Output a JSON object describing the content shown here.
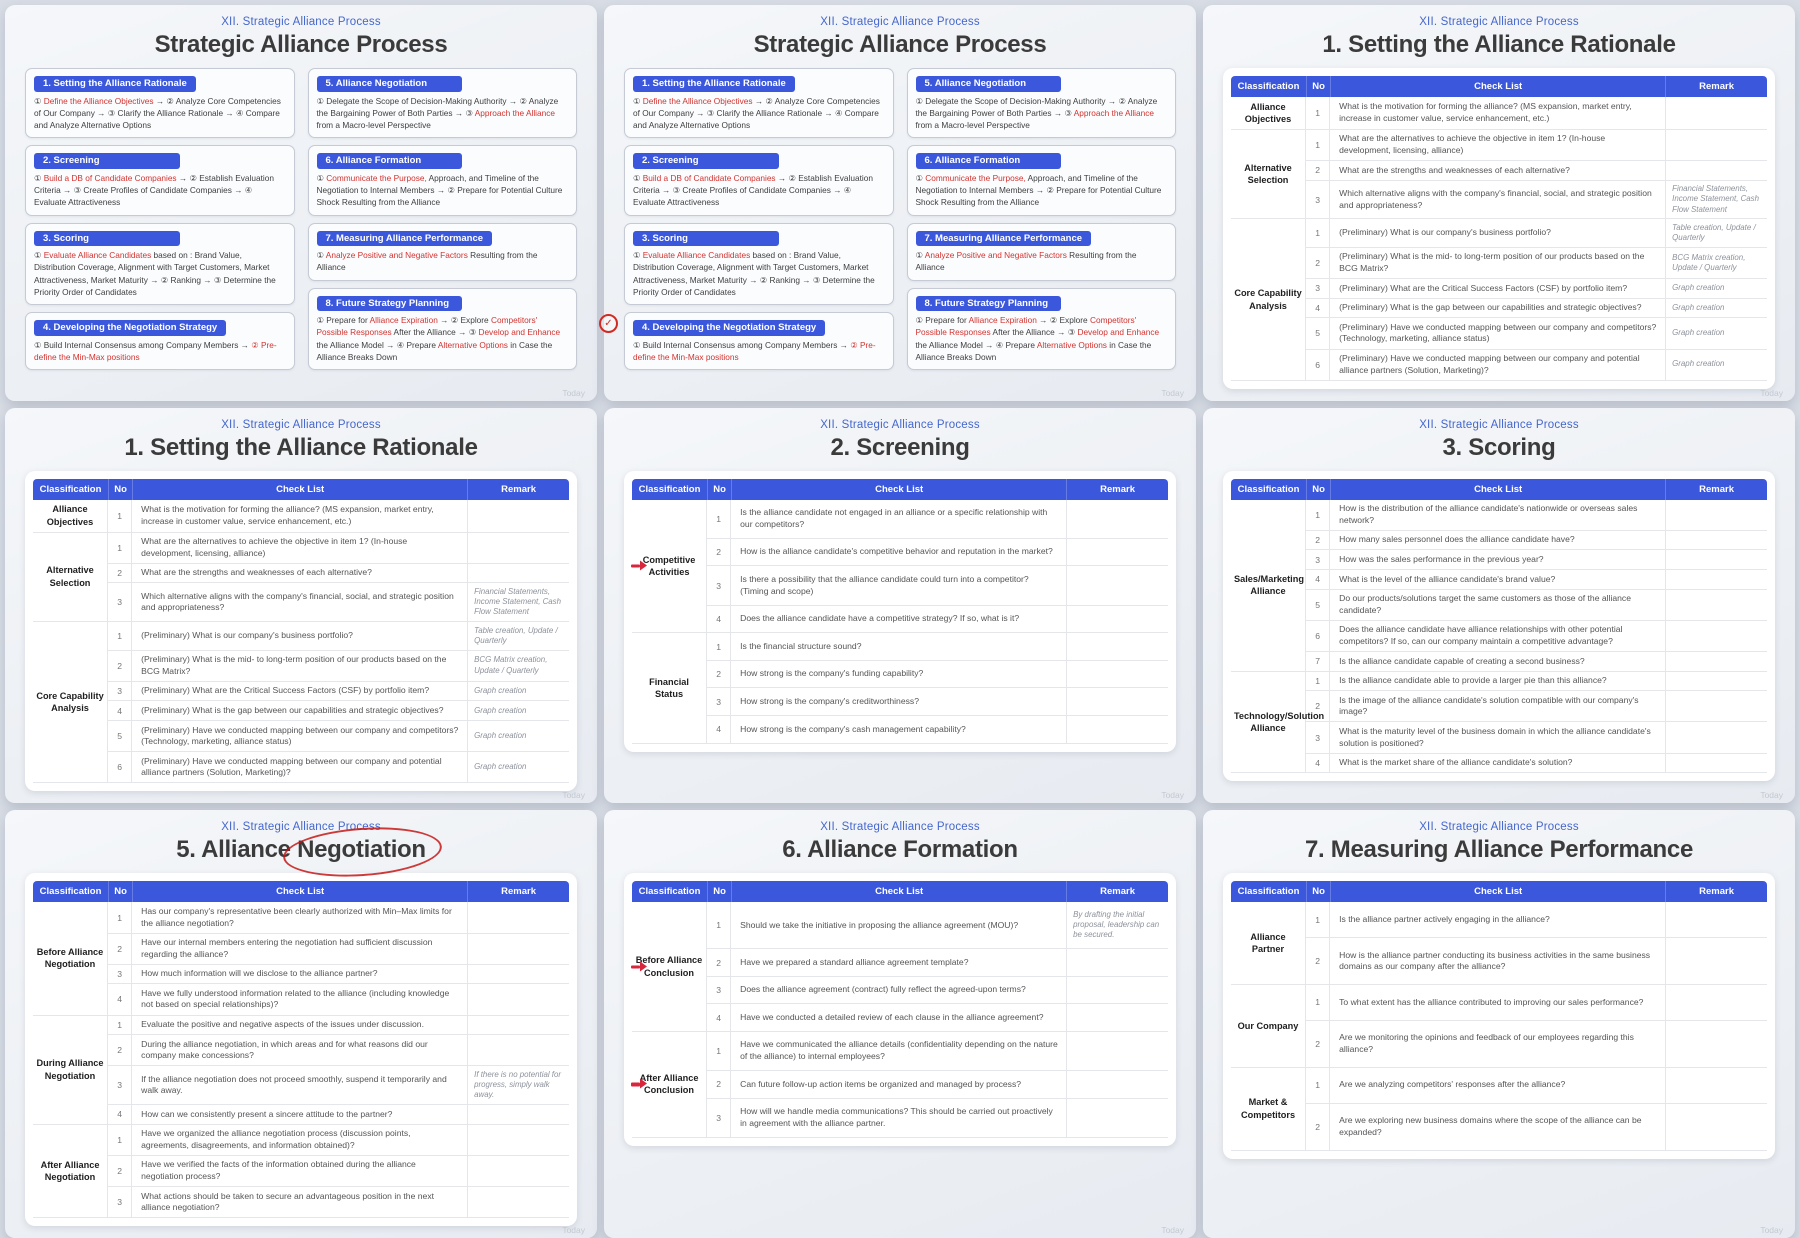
{
  "page": {
    "watermark": "Today"
  },
  "colors": {
    "accent_blue": "#3b58dd",
    "kicker_blue": "#4567cc",
    "annotation_red": "#cf2b24",
    "text_red": "#d23430",
    "title_dark": "#3b3b3b"
  },
  "annotation_icons": {
    "check": "✓",
    "arrow": "red-right-arrow"
  },
  "process_boxes": [
    {
      "title": "1. Setting the Alliance Rationale",
      "steps": [
        [
          "① ",
          0
        ],
        [
          "Define the Alliance Objectives",
          1
        ],
        [
          " → ② Analyze Core Competencies of Our Company → ③ Clarify the Alliance Rationale → ④ Compare and Analyze Alternative Options",
          0
        ]
      ]
    },
    {
      "title": "2. Screening",
      "steps": [
        [
          "① ",
          0
        ],
        [
          "Build a DB of Candidate Companies",
          1
        ],
        [
          " → ② Establish Evaluation Criteria → ③ Create Profiles of Candidate Companies → ④ Evaluate Attractiveness",
          0
        ]
      ]
    },
    {
      "title": "3. Scoring",
      "steps": [
        [
          "① ",
          0
        ],
        [
          "Evaluate Alliance Candidates",
          1
        ],
        [
          " based on : Brand Value, Distribution Coverage, Alignment with Target Customers, Market Attractiveness, Market Maturity → ② Ranking → ③ Determine the Priority Order of Candidates",
          0
        ]
      ]
    },
    {
      "title": "4. Developing the Negotiation Strategy",
      "steps": [
        [
          "① Build Internal Consensus among Company Members → ",
          0
        ],
        [
          "② Pre-define the Min-Max positions",
          1
        ]
      ]
    },
    {
      "title": "5. Alliance Negotiation",
      "steps": [
        [
          "① Delegate the Scope of Decision-Making Authority → ② Analyze the Bargaining Power of Both Parties → ③ ",
          0
        ],
        [
          "Approach the Alliance",
          1
        ],
        [
          " from a Macro-level Perspective",
          0
        ]
      ]
    },
    {
      "title": "6. Alliance Formation",
      "steps": [
        [
          "① ",
          0
        ],
        [
          "Communicate the Purpose,",
          1
        ],
        [
          " Approach, and Timeline of the Negotiation to Internal Members → ② Prepare for Potential Culture Shock Resulting from the Alliance",
          0
        ]
      ]
    },
    {
      "title": "7. Measuring Alliance Performance",
      "steps": [
        [
          "① ",
          0
        ],
        [
          "Analyze Positive and Negative Factors",
          1
        ],
        [
          " Resulting from the Alliance",
          0
        ]
      ]
    },
    {
      "title": "8. Future Strategy Planning",
      "steps": [
        [
          "① Prepare for ",
          0
        ],
        [
          "Alliance Expiration",
          1
        ],
        [
          " → ② Explore ",
          0
        ],
        [
          "Competitors' Possible Responses",
          1
        ],
        [
          " After the Alliance → ③ ",
          0
        ],
        [
          "Develop and Enhance",
          1
        ],
        [
          " the Alliance Model → ④ Prepare ",
          0
        ],
        [
          "Alternative Options",
          1
        ],
        [
          " in Case the Alliance Breaks Down",
          0
        ]
      ]
    }
  ],
  "tables": {
    "rationale": {
      "columns": [
        "Classification",
        "No",
        "Check List",
        "Remark"
      ],
      "groups": [
        {
          "label": "Alliance Objectives",
          "rows": [
            {
              "no": "1",
              "check": "What is the motivation for forming the alliance? (MS expansion, market entry, increase in customer value, service enhancement, etc.)",
              "remark": ""
            }
          ]
        },
        {
          "label": "Alternative Selection",
          "rows": [
            {
              "no": "1",
              "check": "What are the alternatives to achieve the objective in item 1? (In-house development, licensing, alliance)",
              "remark": ""
            },
            {
              "no": "2",
              "check": "What are the strengths and weaknesses of each alternative?",
              "remark": ""
            },
            {
              "no": "3",
              "check": "Which alternative aligns with the company's financial, social, and strategic position and appropriateness?",
              "remark": "Financial Statements, Income Statement, Cash Flow Statement"
            }
          ]
        },
        {
          "label": "Core Capability Analysis",
          "rows": [
            {
              "no": "1",
              "check": "(Preliminary) What is our company's business portfolio?",
              "remark": "Table creation, Update / Quarterly"
            },
            {
              "no": "2",
              "check": "(Preliminary) What is the mid- to long-term position of our products based on the BCG Matrix?",
              "remark": "BCG Matrix creation, Update / Quarterly"
            },
            {
              "no": "3",
              "check": "(Preliminary) What are the Critical Success Factors (CSF) by portfolio item?",
              "remark": "Graph creation"
            },
            {
              "no": "4",
              "check": "(Preliminary) What is the gap between our capabilities and strategic objectives?",
              "remark": "Graph creation"
            },
            {
              "no": "5",
              "check": "(Preliminary) Have we conducted mapping between our company and competitors? (Technology, marketing, alliance status)",
              "remark": "Graph creation"
            },
            {
              "no": "6",
              "check": "(Preliminary) Have we conducted mapping between our company and potential alliance partners (Solution, Marketing)?",
              "remark": "Graph creation"
            }
          ]
        }
      ]
    },
    "screening": {
      "columns": [
        "Classification",
        "No",
        "Check List",
        "Remark"
      ],
      "groups": [
        {
          "label": "Competitive Activities",
          "arrow": true,
          "rows": [
            {
              "no": "1",
              "check": "Is the alliance candidate not engaged in an alliance or a specific relationship with our competitors?",
              "remark": ""
            },
            {
              "no": "2",
              "check": "How is the alliance candidate's competitive behavior and reputation in the market?",
              "remark": ""
            },
            {
              "no": "3",
              "check": "Is there a possibility that the alliance candidate could turn into a competitor? (Timing and scope)",
              "remark": ""
            },
            {
              "no": "4",
              "check": "Does the alliance candidate have a competitive strategy? If so, what is it?",
              "remark": ""
            }
          ]
        },
        {
          "label": "Financial Status",
          "rows": [
            {
              "no": "1",
              "check": "Is the financial structure sound?",
              "remark": ""
            },
            {
              "no": "2",
              "check": "How strong is the company's funding capability?",
              "remark": ""
            },
            {
              "no": "3",
              "check": "How strong is the company's creditworthiness?",
              "remark": ""
            },
            {
              "no": "4",
              "check": "How strong is the company's cash management capability?",
              "remark": ""
            }
          ]
        }
      ]
    },
    "scoring": {
      "columns": [
        "Classification",
        "No",
        "Check List",
        "Remark"
      ],
      "groups": [
        {
          "label": "Sales/Marketing Alliance",
          "rows": [
            {
              "no": "1",
              "check": "How is the distribution of the alliance candidate's nationwide or overseas sales network?",
              "remark": ""
            },
            {
              "no": "2",
              "check": "How many sales personnel does the alliance candidate have?",
              "remark": ""
            },
            {
              "no": "3",
              "check": "How was the sales performance in the previous year?",
              "remark": ""
            },
            {
              "no": "4",
              "check": "What is the level of the alliance candidate's brand value?",
              "remark": ""
            },
            {
              "no": "5",
              "check": "Do our products/solutions target the same customers as those of the alliance candidate?",
              "remark": ""
            },
            {
              "no": "6",
              "check": "Does the alliance candidate have alliance relationships with other potential competitors? If so, can our company maintain a competitive advantage?",
              "remark": ""
            },
            {
              "no": "7",
              "check": "Is the alliance candidate capable of creating a second business?",
              "remark": ""
            }
          ]
        },
        {
          "label": "Technology/Solution Alliance",
          "rows": [
            {
              "no": "1",
              "check": "Is the alliance candidate able to provide a larger pie than this alliance?",
              "remark": ""
            },
            {
              "no": "2",
              "check": "Is the image of the alliance candidate's solution compatible with our company's image?",
              "remark": ""
            },
            {
              "no": "3",
              "check": "What is the maturity level of the business domain in which the alliance candidate's solution is positioned?",
              "remark": ""
            },
            {
              "no": "4",
              "check": "What is the market share of the alliance candidate's solution?",
              "remark": ""
            }
          ]
        }
      ]
    },
    "negotiation": {
      "columns": [
        "Classification",
        "No",
        "Check List",
        "Remark"
      ],
      "groups": [
        {
          "label": "Before Alliance Negotiation",
          "rows": [
            {
              "no": "1",
              "check": "Has our company's representative been clearly authorized with Min–Max limits for the alliance negotiation?",
              "remark": ""
            },
            {
              "no": "2",
              "check": "Have our internal members entering the negotiation had sufficient discussion regarding the alliance?",
              "remark": ""
            },
            {
              "no": "3",
              "check": "How much information will we disclose to the alliance partner?",
              "remark": ""
            },
            {
              "no": "4",
              "check": "Have we fully understood information related to the alliance (including knowledge not based on special relationships)?",
              "remark": ""
            }
          ]
        },
        {
          "label": "During Alliance Negotiation",
          "rows": [
            {
              "no": "1",
              "check": "Evaluate the positive and negative aspects of the issues under discussion.",
              "remark": ""
            },
            {
              "no": "2",
              "check": "During the alliance negotiation, in which areas and for what reasons did our company make concessions?",
              "remark": ""
            },
            {
              "no": "3",
              "check": "If the alliance negotiation does not proceed smoothly, suspend it temporarily and walk away.",
              "remark": "If there is no potential for progress, simply walk away."
            },
            {
              "no": "4",
              "check": "How can we consistently present a sincere attitude to the partner?",
              "remark": ""
            }
          ]
        },
        {
          "label": "After Alliance Negotiation",
          "rows": [
            {
              "no": "1",
              "check": "Have we organized the alliance negotiation process (discussion points, agreements, disagreements, and information obtained)?",
              "remark": ""
            },
            {
              "no": "2",
              "check": "Have we verified the facts of the information obtained during the alliance negotiation process?",
              "remark": ""
            },
            {
              "no": "3",
              "check": "What actions should be taken to secure an advantageous position in the next alliance negotiation?",
              "remark": ""
            }
          ]
        }
      ]
    },
    "formation": {
      "columns": [
        "Classification",
        "No",
        "Check List",
        "Remark"
      ],
      "groups": [
        {
          "label": "Before Alliance Conclusion",
          "arrow": true,
          "rows": [
            {
              "no": "1",
              "check": "Should we take the initiative in proposing the alliance agreement (MOU)?",
              "remark": "By drafting the initial proposal, leadership can be secured."
            },
            {
              "no": "2",
              "check": "Have we prepared a standard alliance agreement template?",
              "remark": ""
            },
            {
              "no": "3",
              "check": "Does the alliance agreement (contract) fully reflect the agreed-upon terms?",
              "remark": ""
            },
            {
              "no": "4",
              "check": "Have we conducted a detailed review of each clause in the alliance agreement?",
              "remark": ""
            }
          ]
        },
        {
          "label": "After Alliance Conclusion",
          "arrow": true,
          "rows": [
            {
              "no": "1",
              "check": "Have we communicated the alliance details (confidentiality depending on the nature of the alliance) to internal employees?",
              "remark": ""
            },
            {
              "no": "2",
              "check": "Can future follow-up action items be organized and managed by process?",
              "remark": ""
            },
            {
              "no": "3",
              "check": "How will we handle media communications? This should be carried out proactively in agreement with the alliance partner.",
              "remark": ""
            }
          ]
        }
      ]
    },
    "measuring": {
      "columns": [
        "Classification",
        "No",
        "Check List",
        "Remark"
      ],
      "groups": [
        {
          "label": "Alliance Partner",
          "rows": [
            {
              "no": "1",
              "check": "Is the alliance partner actively engaging in the alliance?",
              "remark": ""
            },
            {
              "no": "2",
              "check": "How is the alliance partner conducting its business activities in the same business domains as our company after the alliance?",
              "remark": ""
            }
          ]
        },
        {
          "label": "Our Company",
          "rows": [
            {
              "no": "1",
              "check": "To what extent has the alliance contributed to improving our sales performance?",
              "remark": ""
            },
            {
              "no": "2",
              "check": "Are we monitoring the opinions and feedback of our employees regarding this alliance?",
              "remark": ""
            }
          ]
        },
        {
          "label": "Market & Competitors",
          "rows": [
            {
              "no": "1",
              "check": "Are we analyzing competitors' responses after the alliance?",
              "remark": ""
            },
            {
              "no": "2",
              "check": "Are we exploring new business domains where the scope of the alliance can be expanded?",
              "remark": ""
            }
          ]
        }
      ]
    }
  },
  "slides": [
    {
      "id": "overview-a",
      "kicker": "XII. Strategic Alliance Process",
      "title": "Strategic Alliance Process",
      "type": "process"
    },
    {
      "id": "overview-b",
      "kicker": "XII. Strategic Alliance Process",
      "title": "Strategic Alliance Process",
      "type": "process",
      "annotation": {
        "kind": "check-badge",
        "box_index": 3
      }
    },
    {
      "id": "rationale-a",
      "kicker": "XII. Strategic Alliance Process",
      "title": "1. Setting the Alliance Rationale",
      "type": "table",
      "table": "rationale"
    },
    {
      "id": "rationale-b",
      "kicker": "XII. Strategic Alliance Process",
      "title": "1. Setting the Alliance Rationale",
      "type": "table",
      "table": "rationale"
    },
    {
      "id": "screening",
      "kicker": "XII. Strategic Alliance Process",
      "title": "2. Screening",
      "type": "table",
      "table": "screening"
    },
    {
      "id": "scoring",
      "kicker": "XII. Strategic Alliance Process",
      "title": "3. Scoring",
      "type": "table",
      "table": "scoring"
    },
    {
      "id": "negotiation",
      "kicker": "XII. Strategic Alliance Process",
      "title": "5. Alliance Negotiation",
      "type": "table",
      "table": "negotiation",
      "annotation": {
        "kind": "ellipse-title-word",
        "word": "Negotiation"
      }
    },
    {
      "id": "formation",
      "kicker": "XII. Strategic Alliance Process",
      "title": "6. Alliance Formation",
      "type": "table",
      "table": "formation"
    },
    {
      "id": "measuring",
      "kicker": "XII. Strategic Alliance Process",
      "title": "7. Measuring Alliance Performance",
      "type": "table",
      "table": "measuring"
    }
  ]
}
